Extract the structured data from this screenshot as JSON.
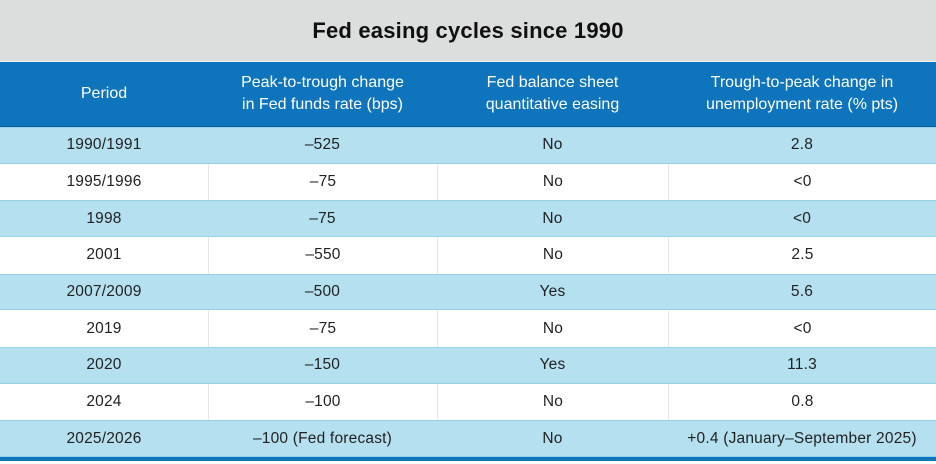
{
  "title": "Fed easing cycles since 1990",
  "colors": {
    "header_blue": "#0e74bc",
    "row_light_blue": "#b5e0ef",
    "title_band_gray": "#dbdedc",
    "bottom_bar_blue": "#0e74bc"
  },
  "table": {
    "columns": [
      {
        "label": "Period"
      },
      {
        "label": "Peak-to-trough change\nin Fed funds rate (bps)"
      },
      {
        "label": "Fed balance sheet\nquantitative easing"
      },
      {
        "label": "Trough-to-peak change in\nunemployment rate (% pts)"
      }
    ],
    "rows": [
      {
        "period": "1990/1991",
        "rate_change": "–525",
        "qe": "No",
        "unemployment": "2.8"
      },
      {
        "period": "1995/1996",
        "rate_change": "–75",
        "qe": "No",
        "unemployment": "<0"
      },
      {
        "period": "1998",
        "rate_change": "–75",
        "qe": "No",
        "unemployment": "<0"
      },
      {
        "period": "2001",
        "rate_change": "–550",
        "qe": "No",
        "unemployment": "2.5"
      },
      {
        "period": "2007/2009",
        "rate_change": "–500",
        "qe": "Yes",
        "unemployment": "5.6"
      },
      {
        "period": "2019",
        "rate_change": "–75",
        "qe": "No",
        "unemployment": "<0"
      },
      {
        "period": "2020",
        "rate_change": "–150",
        "qe": "Yes",
        "unemployment": "11.3"
      },
      {
        "period": "2024",
        "rate_change": "–100",
        "qe": "No",
        "unemployment": "0.8"
      },
      {
        "period": "2025/2026",
        "rate_change": "–100 (Fed forecast)",
        "qe": "No",
        "unemployment": "+0.4 (January–September 2025)"
      }
    ]
  },
  "chart_data": {
    "type": "table",
    "title": "Fed easing cycles since 1990",
    "columns": [
      "Period",
      "Peak-to-trough change in Fed funds rate (bps)",
      "Fed balance sheet quantitative easing",
      "Trough-to-peak change in unemployment rate (% pts)"
    ],
    "rows": [
      [
        "1990/1991",
        "–525",
        "No",
        "2.8"
      ],
      [
        "1995/1996",
        "–75",
        "No",
        "<0"
      ],
      [
        "1998",
        "–75",
        "No",
        "<0"
      ],
      [
        "2001",
        "–550",
        "No",
        "2.5"
      ],
      [
        "2007/2009",
        "–500",
        "Yes",
        "5.6"
      ],
      [
        "2019",
        "–75",
        "No",
        "<0"
      ],
      [
        "2020",
        "–150",
        "Yes",
        "11.3"
      ],
      [
        "2024",
        "–100",
        "No",
        "0.8"
      ],
      [
        "2025/2026",
        "–100 (Fed forecast)",
        "No",
        "+0.4 (January–September 2025)"
      ]
    ],
    "layout": {
      "header_background": "#0e74bc",
      "alternating_row_background": [
        "#b5e0ef",
        "#ffffff"
      ],
      "first_data_row_shaded": true,
      "title_band_background": "#dbdedc",
      "text_alignment": "center"
    }
  }
}
